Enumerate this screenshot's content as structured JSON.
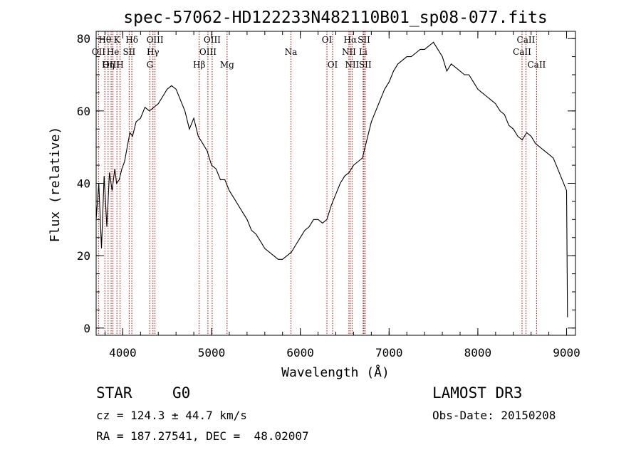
{
  "chart_data": {
    "type": "line",
    "title": "spec-57062-HD122233N482110B01_sp08-077.fits",
    "xlabel": "Wavelength (Å)",
    "ylabel": "Flux (relative)",
    "xlim": [
      3700,
      9100
    ],
    "ylim": [
      -2,
      82
    ],
    "xticks": [
      4000,
      5000,
      6000,
      7000,
      8000,
      9000
    ],
    "yticks": [
      0,
      20,
      40,
      60,
      80
    ],
    "x_minor_step": 200,
    "y_minor_step": 5,
    "line_color": "#000000",
    "marker_color": "#cc0000",
    "series": [
      {
        "name": "flux",
        "points": [
          [
            3700,
            30
          ],
          [
            3730,
            40
          ],
          [
            3760,
            22
          ],
          [
            3790,
            42
          ],
          [
            3820,
            28
          ],
          [
            3850,
            43
          ],
          [
            3880,
            38
          ],
          [
            3910,
            44
          ],
          [
            3930,
            40
          ],
          [
            3960,
            41
          ],
          [
            3990,
            44
          ],
          [
            4020,
            46
          ],
          [
            4050,
            50
          ],
          [
            4080,
            54
          ],
          [
            4110,
            53
          ],
          [
            4150,
            57
          ],
          [
            4200,
            58
          ],
          [
            4250,
            61
          ],
          [
            4300,
            60
          ],
          [
            4350,
            61
          ],
          [
            4400,
            62
          ],
          [
            4450,
            64
          ],
          [
            4500,
            66
          ],
          [
            4550,
            67
          ],
          [
            4600,
            66
          ],
          [
            4650,
            63
          ],
          [
            4700,
            60
          ],
          [
            4750,
            55
          ],
          [
            4800,
            58
          ],
          [
            4850,
            53
          ],
          [
            4900,
            51
          ],
          [
            4950,
            49
          ],
          [
            5000,
            45
          ],
          [
            5050,
            44
          ],
          [
            5100,
            41
          ],
          [
            5150,
            41
          ],
          [
            5200,
            38
          ],
          [
            5250,
            36
          ],
          [
            5300,
            34
          ],
          [
            5350,
            32
          ],
          [
            5400,
            30
          ],
          [
            5450,
            27
          ],
          [
            5500,
            26
          ],
          [
            5550,
            24
          ],
          [
            5600,
            22
          ],
          [
            5650,
            21
          ],
          [
            5700,
            20
          ],
          [
            5750,
            19
          ],
          [
            5800,
            19
          ],
          [
            5850,
            20
          ],
          [
            5900,
            21
          ],
          [
            5950,
            23
          ],
          [
            6000,
            25
          ],
          [
            6050,
            27
          ],
          [
            6100,
            28
          ],
          [
            6150,
            30
          ],
          [
            6200,
            30
          ],
          [
            6250,
            29
          ],
          [
            6300,
            30
          ],
          [
            6350,
            34
          ],
          [
            6400,
            37
          ],
          [
            6450,
            40
          ],
          [
            6500,
            42
          ],
          [
            6550,
            43
          ],
          [
            6600,
            45
          ],
          [
            6650,
            46
          ],
          [
            6700,
            47
          ],
          [
            6750,
            52
          ],
          [
            6800,
            57
          ],
          [
            6850,
            60
          ],
          [
            6900,
            63
          ],
          [
            6950,
            66
          ],
          [
            7000,
            68
          ],
          [
            7050,
            71
          ],
          [
            7100,
            73
          ],
          [
            7150,
            74
          ],
          [
            7200,
            75
          ],
          [
            7250,
            75
          ],
          [
            7300,
            76
          ],
          [
            7350,
            77
          ],
          [
            7400,
            77
          ],
          [
            7450,
            78
          ],
          [
            7500,
            79
          ],
          [
            7550,
            77
          ],
          [
            7600,
            75
          ],
          [
            7650,
            71
          ],
          [
            7700,
            73
          ],
          [
            7750,
            72
          ],
          [
            7800,
            71
          ],
          [
            7850,
            70
          ],
          [
            7900,
            70
          ],
          [
            7950,
            68
          ],
          [
            8000,
            66
          ],
          [
            8050,
            65
          ],
          [
            8100,
            64
          ],
          [
            8150,
            63
          ],
          [
            8200,
            62
          ],
          [
            8250,
            60
          ],
          [
            8300,
            59
          ],
          [
            8350,
            56
          ],
          [
            8400,
            55
          ],
          [
            8450,
            53
          ],
          [
            8500,
            52
          ],
          [
            8550,
            54
          ],
          [
            8600,
            53
          ],
          [
            8650,
            51
          ],
          [
            8700,
            50
          ],
          [
            8750,
            49
          ],
          [
            8800,
            48
          ],
          [
            8850,
            47
          ],
          [
            8900,
            44
          ],
          [
            8950,
            41
          ],
          [
            9000,
            38
          ],
          [
            9010,
            3
          ]
        ]
      }
    ],
    "line_markers": [
      {
        "label": "Hθ",
        "wavelength": 3798,
        "row": 0
      },
      {
        "label": "OII",
        "wavelength": 3727,
        "row": 1
      },
      {
        "label": "OIII",
        "wavelength": 3869,
        "row": 2
      },
      {
        "label": "K",
        "wavelength": 3934,
        "row": 0
      },
      {
        "label": "H",
        "wavelength": 3969,
        "row": 2
      },
      {
        "label": "He",
        "wavelength": 3889,
        "row": 1
      },
      {
        "label": "SII",
        "wavelength": 4072,
        "row": 1
      },
      {
        "label": "Hη",
        "wavelength": 3835,
        "row": 2
      },
      {
        "label": "Hδ",
        "wavelength": 4102,
        "row": 0
      },
      {
        "label": "OIII",
        "wavelength": 4363,
        "row": 0
      },
      {
        "label": "Hγ",
        "wavelength": 4340,
        "row": 1
      },
      {
        "label": "G",
        "wavelength": 4305,
        "row": 2
      },
      {
        "label": "Hβ",
        "wavelength": 4861,
        "row": 2
      },
      {
        "label": "OIII",
        "wavelength": 4959,
        "row": 1
      },
      {
        "label": "OIII",
        "wavelength": 5007,
        "row": 0
      },
      {
        "label": "Mg",
        "wavelength": 5175,
        "row": 2
      },
      {
        "label": "Na",
        "wavelength": 5894,
        "row": 1
      },
      {
        "label": "OI",
        "wavelength": 6300,
        "row": 0
      },
      {
        "label": "OI",
        "wavelength": 6364,
        "row": 2
      },
      {
        "label": "Hα",
        "wavelength": 6563,
        "row": 0
      },
      {
        "label": "NII",
        "wavelength": 6548,
        "row": 1
      },
      {
        "label": "NII",
        "wavelength": 6583,
        "row": 2
      },
      {
        "label": "SII",
        "wavelength": 6717,
        "row": 0
      },
      {
        "label": "Li",
        "wavelength": 6708,
        "row": 1
      },
      {
        "label": "SII",
        "wavelength": 6731,
        "row": 2
      },
      {
        "label": "CaII",
        "wavelength": 8542,
        "row": 0
      },
      {
        "label": "CaII",
        "wavelength": 8498,
        "row": 1
      },
      {
        "label": "CaII",
        "wavelength": 8662,
        "row": 2
      }
    ]
  },
  "info": {
    "object_type": "STAR",
    "subclass": "G0",
    "survey": "LAMOST DR3",
    "redshift": "cz = 124.3 ± 44.7 km/s",
    "obs_date": "Obs-Date: 20150208",
    "coords": "RA = 187.27541, DEC =  48.02007"
  }
}
